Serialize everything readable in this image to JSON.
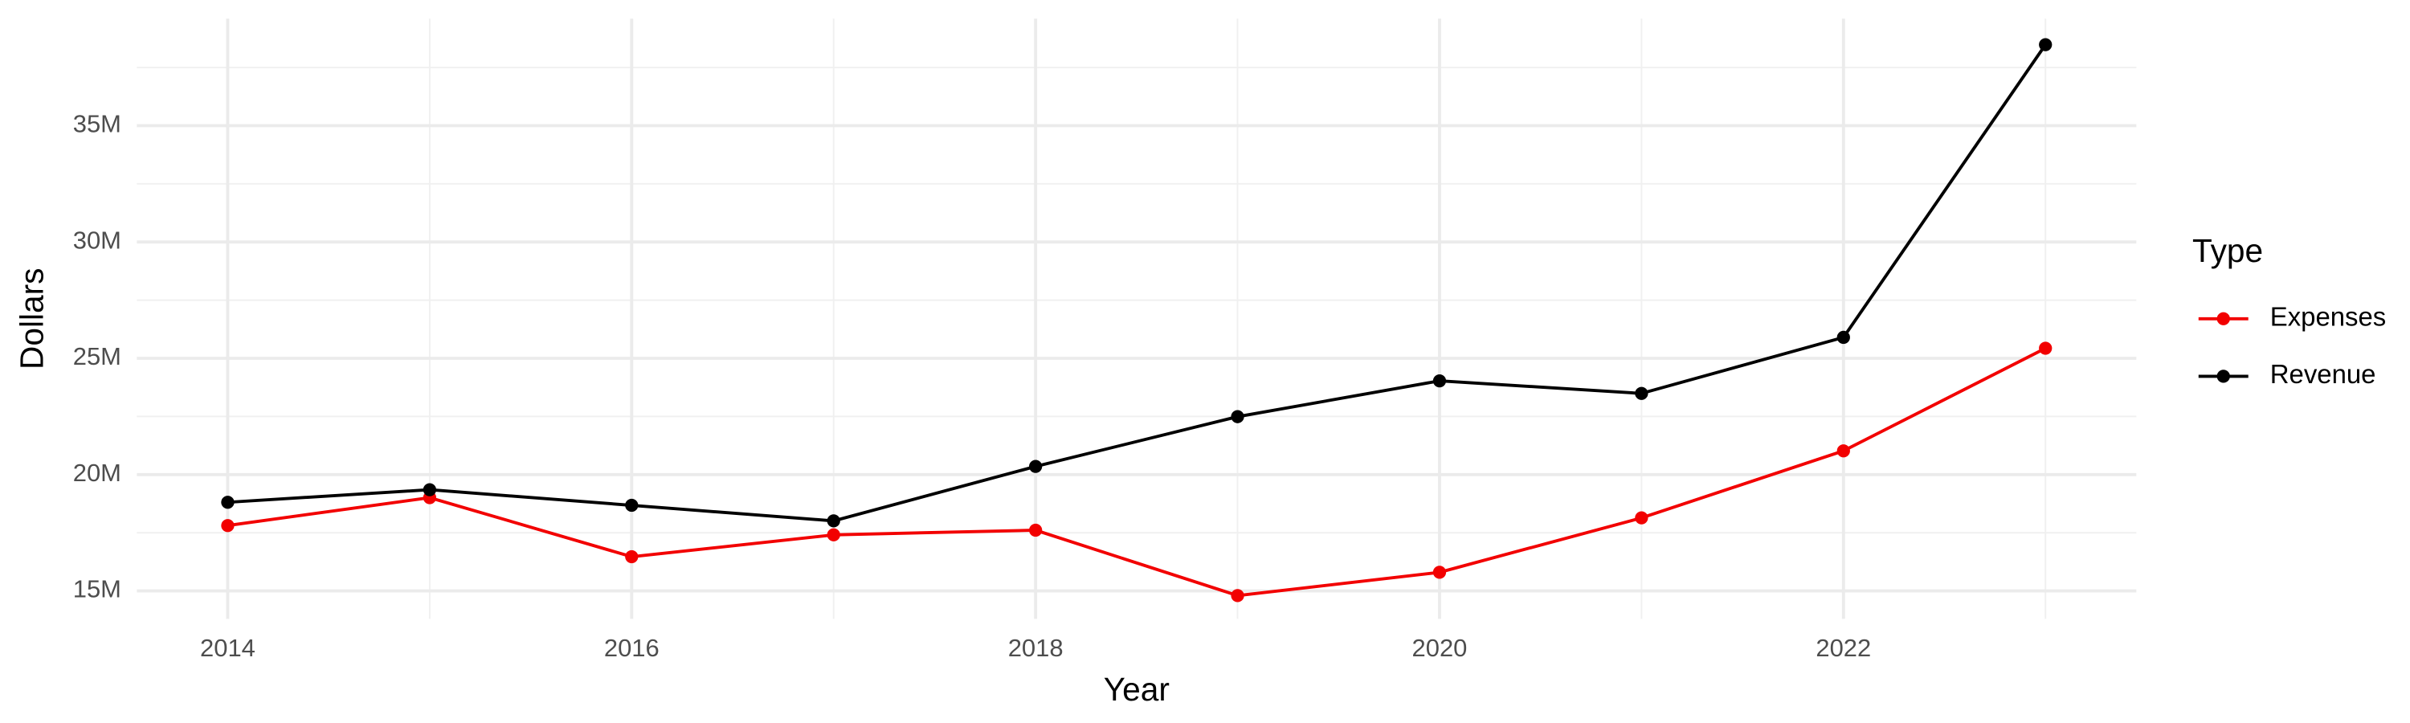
{
  "chart_data": {
    "type": "line",
    "x_label": "Year",
    "y_label": "Dollars",
    "x": [
      2014,
      2015,
      2016,
      2017,
      2018,
      2019,
      2020,
      2021,
      2022,
      2023
    ],
    "series": [
      {
        "name": "Expenses",
        "color": "#f20000",
        "values": [
          17810000,
          19010000,
          16470000,
          17410000,
          17610000,
          14800000,
          15800000,
          18140000,
          21020000,
          25430000
        ]
      },
      {
        "name": "Revenue",
        "color": "#000000",
        "values": [
          18810000,
          19350000,
          18680000,
          18010000,
          20350000,
          22490000,
          24030000,
          23490000,
          25900000,
          38480000
        ]
      }
    ],
    "xlim": [
      2013.55,
      2023.45
    ],
    "xticks": [
      2014,
      2016,
      2018,
      2020,
      2022
    ],
    "ylim": [
      13800000,
      39600000
    ],
    "yticks": [
      {
        "value": 15000000,
        "label": "15M"
      },
      {
        "value": 20000000,
        "label": "20M"
      },
      {
        "value": 25000000,
        "label": "25M"
      },
      {
        "value": 30000000,
        "label": "30M"
      },
      {
        "value": 35000000,
        "label": "35M"
      }
    ],
    "grid": true,
    "legend_title": "Type",
    "legend_position": "right"
  }
}
